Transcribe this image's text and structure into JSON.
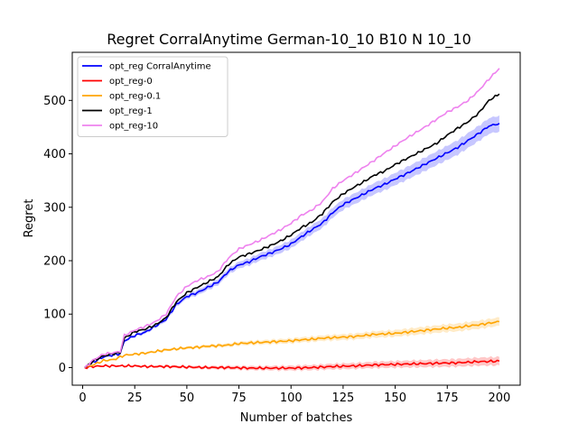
{
  "chart_data": {
    "type": "line",
    "title": "Regret CorralAnytime German-10_10 B10 N 10_10",
    "xlabel": "Number of batches",
    "ylabel": "Regret",
    "xlim": [
      -5,
      210
    ],
    "ylim": [
      -33,
      590
    ],
    "xticks": [
      0,
      25,
      50,
      75,
      100,
      125,
      150,
      175,
      200
    ],
    "yticks": [
      0,
      100,
      200,
      300,
      400,
      500
    ],
    "legend_position": "top-left",
    "series": [
      {
        "name": "opt_reg CorralAnytime",
        "color": "#0000ff",
        "band": true,
        "points": [
          [
            1,
            0
          ],
          [
            5,
            10
          ],
          [
            10,
            20
          ],
          [
            15,
            24
          ],
          [
            18,
            26
          ],
          [
            20,
            50
          ],
          [
            25,
            60
          ],
          [
            30,
            66
          ],
          [
            35,
            78
          ],
          [
            40,
            90
          ],
          [
            45,
            118
          ],
          [
            50,
            133
          ],
          [
            55,
            140
          ],
          [
            60,
            150
          ],
          [
            65,
            160
          ],
          [
            70,
            180
          ],
          [
            75,
            192
          ],
          [
            80,
            198
          ],
          [
            85,
            207
          ],
          [
            90,
            214
          ],
          [
            95,
            222
          ],
          [
            100,
            231
          ],
          [
            105,
            245
          ],
          [
            110,
            258
          ],
          [
            115,
            270
          ],
          [
            120,
            290
          ],
          [
            125,
            305
          ],
          [
            130,
            315
          ],
          [
            135,
            325
          ],
          [
            140,
            335
          ],
          [
            145,
            343
          ],
          [
            150,
            353
          ],
          [
            155,
            362
          ],
          [
            160,
            372
          ],
          [
            165,
            382
          ],
          [
            170,
            392
          ],
          [
            175,
            402
          ],
          [
            180,
            412
          ],
          [
            185,
            425
          ],
          [
            190,
            438
          ],
          [
            195,
            452
          ],
          [
            200,
            457
          ]
        ]
      },
      {
        "name": "opt_reg-0",
        "color": "#ff0000",
        "band": true,
        "points": [
          [
            1,
            0
          ],
          [
            5,
            2
          ],
          [
            10,
            3
          ],
          [
            20,
            3
          ],
          [
            25,
            3
          ],
          [
            30,
            2
          ],
          [
            40,
            2
          ],
          [
            50,
            1
          ],
          [
            60,
            0
          ],
          [
            70,
            0
          ],
          [
            80,
            -1
          ],
          [
            90,
            -1
          ],
          [
            100,
            -1
          ],
          [
            110,
            0
          ],
          [
            120,
            2
          ],
          [
            130,
            3
          ],
          [
            140,
            5
          ],
          [
            150,
            6
          ],
          [
            160,
            7
          ],
          [
            170,
            8
          ],
          [
            180,
            9
          ],
          [
            190,
            11
          ],
          [
            200,
            12
          ]
        ]
      },
      {
        "name": "opt_reg-0.1",
        "color": "#ffa500",
        "band": true,
        "points": [
          [
            1,
            0
          ],
          [
            5,
            5
          ],
          [
            10,
            13
          ],
          [
            15,
            15
          ],
          [
            20,
            23
          ],
          [
            25,
            25
          ],
          [
            30,
            27
          ],
          [
            35,
            30
          ],
          [
            40,
            33
          ],
          [
            45,
            35
          ],
          [
            50,
            37
          ],
          [
            55,
            38
          ],
          [
            60,
            40
          ],
          [
            65,
            41
          ],
          [
            70,
            42
          ],
          [
            75,
            45
          ],
          [
            80,
            46
          ],
          [
            85,
            47
          ],
          [
            90,
            48
          ],
          [
            95,
            49
          ],
          [
            100,
            50
          ],
          [
            105,
            52
          ],
          [
            110,
            53
          ],
          [
            115,
            55
          ],
          [
            120,
            56
          ],
          [
            125,
            57
          ],
          [
            130,
            58
          ],
          [
            135,
            60
          ],
          [
            140,
            62
          ],
          [
            145,
            63
          ],
          [
            150,
            64
          ],
          [
            155,
            66
          ],
          [
            160,
            68
          ],
          [
            165,
            70
          ],
          [
            170,
            72
          ],
          [
            175,
            74
          ],
          [
            180,
            75
          ],
          [
            185,
            78
          ],
          [
            190,
            80
          ],
          [
            195,
            83
          ],
          [
            200,
            86
          ]
        ]
      },
      {
        "name": "opt_reg-1",
        "color": "#000000",
        "band": false,
        "points": [
          [
            1,
            0
          ],
          [
            5,
            12
          ],
          [
            10,
            22
          ],
          [
            15,
            26
          ],
          [
            18,
            28
          ],
          [
            20,
            55
          ],
          [
            25,
            67
          ],
          [
            30,
            72
          ],
          [
            35,
            80
          ],
          [
            40,
            93
          ],
          [
            45,
            123
          ],
          [
            50,
            140
          ],
          [
            55,
            150
          ],
          [
            60,
            160
          ],
          [
            65,
            170
          ],
          [
            70,
            193
          ],
          [
            75,
            207
          ],
          [
            80,
            213
          ],
          [
            85,
            220
          ],
          [
            90,
            228
          ],
          [
            95,
            237
          ],
          [
            100,
            248
          ],
          [
            105,
            262
          ],
          [
            110,
            272
          ],
          [
            115,
            288
          ],
          [
            120,
            310
          ],
          [
            125,
            325
          ],
          [
            130,
            337
          ],
          [
            135,
            348
          ],
          [
            140,
            360
          ],
          [
            145,
            368
          ],
          [
            150,
            380
          ],
          [
            155,
            390
          ],
          [
            160,
            400
          ],
          [
            165,
            410
          ],
          [
            170,
            420
          ],
          [
            175,
            435
          ],
          [
            180,
            448
          ],
          [
            185,
            460
          ],
          [
            190,
            476
          ],
          [
            195,
            500
          ],
          [
            200,
            512
          ]
        ]
      },
      {
        "name": "opt_reg-10",
        "color": "#ee82ee",
        "band": false,
        "points": [
          [
            1,
            0
          ],
          [
            5,
            14
          ],
          [
            10,
            25
          ],
          [
            15,
            28
          ],
          [
            18,
            30
          ],
          [
            20,
            60
          ],
          [
            25,
            70
          ],
          [
            30,
            77
          ],
          [
            35,
            86
          ],
          [
            40,
            100
          ],
          [
            45,
            133
          ],
          [
            50,
            152
          ],
          [
            55,
            163
          ],
          [
            60,
            170
          ],
          [
            65,
            180
          ],
          [
            70,
            205
          ],
          [
            75,
            222
          ],
          [
            80,
            230
          ],
          [
            85,
            238
          ],
          [
            90,
            248
          ],
          [
            95,
            258
          ],
          [
            100,
            270
          ],
          [
            105,
            285
          ],
          [
            110,
            295
          ],
          [
            115,
            310
          ],
          [
            120,
            335
          ],
          [
            125,
            350
          ],
          [
            130,
            362
          ],
          [
            135,
            375
          ],
          [
            140,
            388
          ],
          [
            145,
            402
          ],
          [
            150,
            415
          ],
          [
            155,
            428
          ],
          [
            160,
            440
          ],
          [
            165,
            452
          ],
          [
            170,
            465
          ],
          [
            175,
            478
          ],
          [
            180,
            488
          ],
          [
            185,
            500
          ],
          [
            190,
            518
          ],
          [
            195,
            540
          ],
          [
            200,
            560
          ]
        ]
      }
    ]
  }
}
